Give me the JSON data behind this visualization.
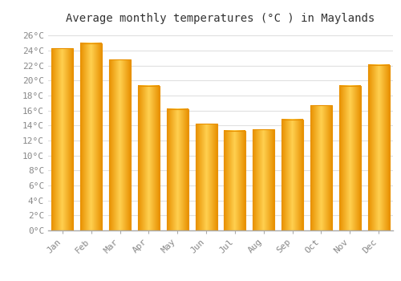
{
  "title": "Average monthly temperatures (°C ) in Maylands",
  "months": [
    "Jan",
    "Feb",
    "Mar",
    "Apr",
    "May",
    "Jun",
    "Jul",
    "Aug",
    "Sep",
    "Oct",
    "Nov",
    "Dec"
  ],
  "values": [
    24.3,
    25.0,
    22.8,
    19.3,
    16.2,
    14.2,
    13.3,
    13.5,
    14.8,
    16.7,
    19.3,
    22.1
  ],
  "bar_color_dark": "#E89000",
  "bar_color_light": "#FFD050",
  "background_color": "#FFFFFF",
  "grid_color": "#E0E0E0",
  "ytick_max": 26,
  "ytick_step": 2,
  "ylim_max": 27,
  "title_fontsize": 10,
  "tick_fontsize": 8,
  "font_family": "monospace"
}
